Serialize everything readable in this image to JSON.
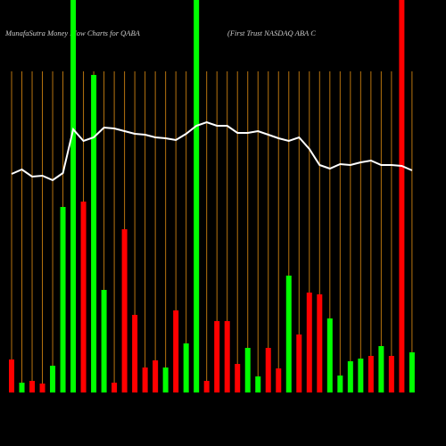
{
  "chart_data": {
    "type": "bar",
    "title": "MunafaSutra  Money Flow  Charts for QABA",
    "subtitle": "(First Trust NASDAQ ABA C",
    "categories": [
      null,
      null,
      null,
      null,
      null,
      null,
      null,
      null,
      null,
      null,
      null,
      null,
      null,
      null,
      null,
      null,
      null,
      null,
      null,
      null,
      null,
      null,
      null,
      null,
      null,
      null,
      null,
      null,
      null,
      null,
      null,
      null,
      null,
      null,
      null,
      null,
      null,
      null,
      null,
      null
    ],
    "values": [
      37,
      11,
      13,
      10,
      30,
      208,
      440,
      214,
      356,
      115,
      11,
      183,
      87,
      28,
      36,
      28,
      92,
      55,
      440,
      13,
      80,
      80,
      32,
      50,
      18,
      50,
      27,
      131,
      65,
      112,
      110,
      83,
      19,
      35,
      38,
      41,
      52,
      41,
      440,
      45
    ],
    "bar_colors": [
      "#ff0000",
      "#00ff00",
      "#ff0000",
      "#ff0000",
      "#00ff00",
      "#00ff00",
      "#00ff00",
      "#ff0000",
      "#00ff00",
      "#00ff00",
      "#ff0000",
      "#ff0000",
      "#ff0000",
      "#ff0000",
      "#ff0000",
      "#00ff00",
      "#ff0000",
      "#00ff00",
      "#00ff00",
      "#ff0000",
      "#ff0000",
      "#ff0000",
      "#ff0000",
      "#00ff00",
      "#00ff00",
      "#ff0000",
      "#ff0000",
      "#00ff00",
      "#ff0000",
      "#ff0000",
      "#ff0000",
      "#00ff00",
      "#00ff00",
      "#00ff00",
      "#00ff00",
      "#ff0000",
      "#00ff00",
      "#ff0000",
      "#ff0000",
      "#00ff00"
    ],
    "line_values": [
      245,
      250,
      242,
      243,
      238,
      246,
      295,
      282,
      286,
      297,
      296,
      293,
      290,
      289,
      286,
      285,
      283,
      290,
      299,
      303,
      299,
      299,
      291,
      291,
      293,
      289,
      285,
      282,
      286,
      273,
      255,
      251,
      256,
      255,
      258,
      260,
      255,
      255,
      254,
      249
    ],
    "line_color": "#ffffff",
    "grid_color": "#b8740f",
    "ylim": [
      0,
      440
    ]
  }
}
